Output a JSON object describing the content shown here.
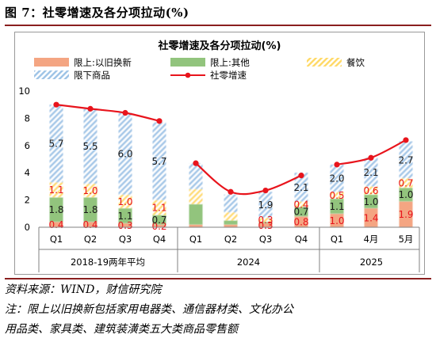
{
  "figure_title": "图 7：社零增速及各分项拉动(%)",
  "source_note": "资料来源：WIND，财信研究院",
  "footnote_line1": "注：限上以旧换新包括家用电器类、通信器材类、文化办公",
  "footnote_line2": "用品类、家具类、建筑装潢类五大类商品零售额",
  "chart_data": {
    "type": "bar",
    "title": "社零增速及各分项拉动(%)",
    "categories": [
      "Q1",
      "Q2",
      "Q3",
      "Q4",
      "Q1",
      "Q2",
      "Q3",
      "Q4",
      "Q1",
      "4月",
      "5月"
    ],
    "groups": [
      {
        "label": "2018-19两年平均",
        "span": [
          0,
          3
        ]
      },
      {
        "label": "2024",
        "span": [
          4,
          7
        ]
      },
      {
        "label": "2025",
        "span": [
          8,
          10
        ]
      }
    ],
    "series": [
      {
        "name": "限上:以旧换新",
        "kind": "stacked-bar",
        "color": "#f4a582",
        "values": [
          0.4,
          0.4,
          0.3,
          0.2,
          0.2,
          0.2,
          0.3,
          0.8,
          1.0,
          1.4,
          1.9
        ],
        "labels": [
          "0.4",
          "0.4",
          "0.3",
          "0.2",
          "",
          "",
          "0.3",
          "0.8",
          "1.0",
          "1.4",
          "1.9"
        ]
      },
      {
        "name": "限上:其他",
        "kind": "stacked-bar",
        "color": "#92c47d",
        "values": [
          1.8,
          1.8,
          1.1,
          0.7,
          1.5,
          0.3,
          0.1,
          0.7,
          1.1,
          1.0,
          1.0
        ],
        "labels": [
          "1.8",
          "1.8",
          "1.1",
          "0.7",
          "",
          "",
          "",
          "0.7",
          "1.1",
          "1.0",
          "1.0"
        ]
      },
      {
        "name": "餐饮",
        "kind": "stacked-bar",
        "color": "#ffd966",
        "values": [
          1.1,
          1.0,
          1.0,
          1.1,
          1.1,
          0.6,
          0.3,
          0.4,
          0.5,
          0.6,
          0.7
        ],
        "labels": [
          "1.1",
          "1.0",
          "1.0",
          "1.1",
          "",
          "",
          "0.3",
          "0.4",
          "0.5",
          "0.6",
          "0.7"
        ]
      },
      {
        "name": "限下商品",
        "kind": "stacked-bar",
        "color": "#9dc3e6",
        "values": [
          5.7,
          5.5,
          6.0,
          5.7,
          1.9,
          1.3,
          1.9,
          2.1,
          2.0,
          2.1,
          2.7
        ],
        "labels": [
          "5.7",
          "5.5",
          "6.0",
          "5.7",
          "",
          "",
          "1.9",
          "2.1",
          "2.0",
          "2.1",
          "2.7"
        ]
      },
      {
        "name": "社零增速",
        "kind": "line",
        "color": "#e8141c",
        "values": [
          9.0,
          8.7,
          8.4,
          7.8,
          4.7,
          2.6,
          2.7,
          3.8,
          4.6,
          5.1,
          6.4
        ]
      }
    ],
    "ylim": [
      0,
      10
    ],
    "yticks": [
      0,
      2,
      4,
      6,
      8,
      10
    ],
    "xlabel": "",
    "ylabel": "",
    "legend_position": "top",
    "grid": false
  }
}
